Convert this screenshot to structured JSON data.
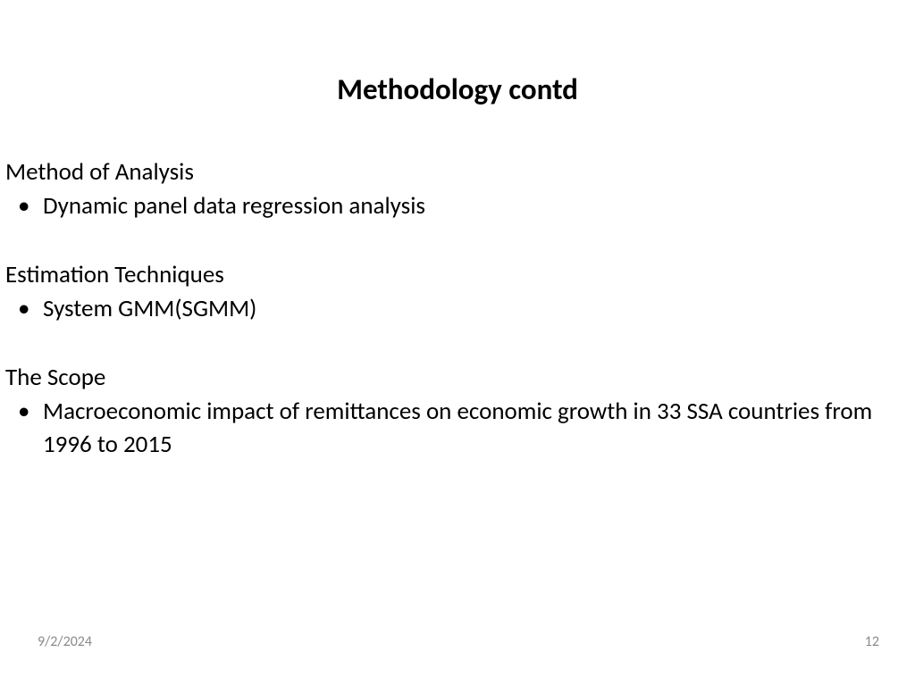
{
  "slide": {
    "title": "Methodology contd",
    "sections": [
      {
        "heading": "Method of Analysis",
        "bullet": "Dynamic panel data regression analysis"
      },
      {
        "heading": "Estimation Techniques",
        "bullet": "System GMM(SGMM)"
      },
      {
        "heading": "The Scope",
        "bullet": "Macroeconomic impact of remittances on economic growth in 33 SSA countries from 1996 to 2015"
      }
    ],
    "footer": {
      "date": "9/2/2024",
      "page": "12"
    }
  },
  "style": {
    "background_color": "#ffffff",
    "title_font_size_pt": 24,
    "title_font_weight": 700,
    "body_font_size_pt": 20,
    "body_font_weight": 400,
    "footer_font_size_pt": 12,
    "footer_color": "#8a8a8a",
    "text_color": "#000000",
    "font_family": "Calibri"
  }
}
